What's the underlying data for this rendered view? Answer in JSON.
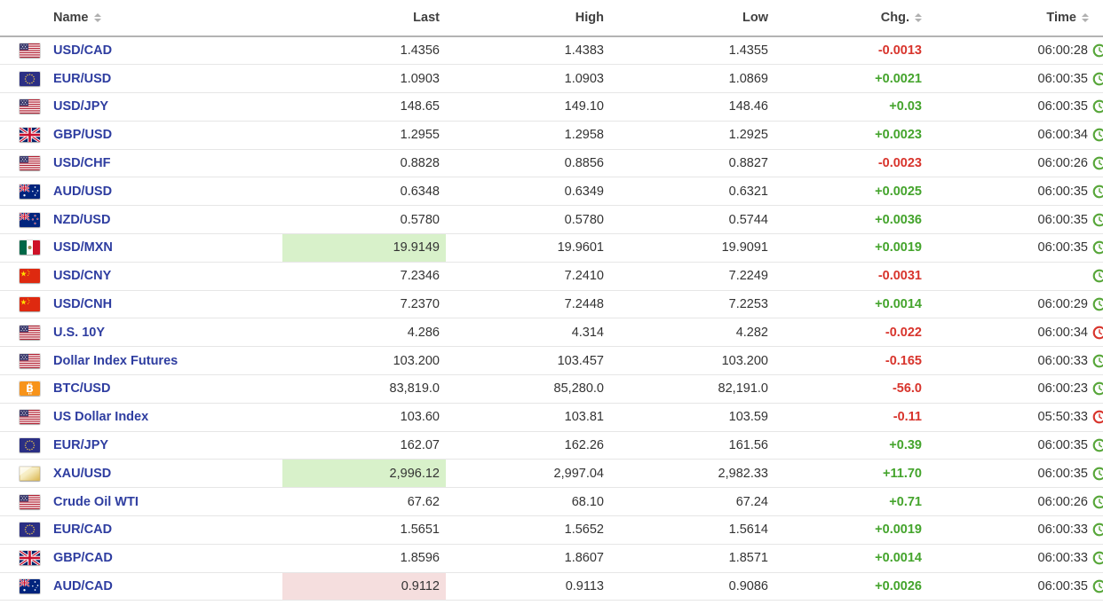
{
  "colors": {
    "link_blue": "#2e3da0",
    "change_up_green": "#44a42c",
    "change_down_red": "#d8342c",
    "highlight_green_bg": "#d8f1ca",
    "highlight_red_bg": "#f5dede",
    "header_divider": "#b3b3b3",
    "row_divider": "#e6e6e6",
    "bitcoin_orange": "#f7931a"
  },
  "table": {
    "columns": [
      {
        "label": "Name",
        "sortable": true
      },
      {
        "label": "Last",
        "sortable": false
      },
      {
        "label": "High",
        "sortable": false
      },
      {
        "label": "Low",
        "sortable": false
      },
      {
        "label": "Chg.",
        "sortable": true
      },
      {
        "label": "Time",
        "sortable": true
      }
    ],
    "rows": [
      {
        "name": "USD/CAD",
        "flag": "us",
        "last": "1.4356",
        "high": "1.4383",
        "low": "1.4355",
        "chg": "-0.0013",
        "chg_dir": "down",
        "time": "06:00:28",
        "clock": "green",
        "highlight": null
      },
      {
        "name": "EUR/USD",
        "flag": "eu",
        "last": "1.0903",
        "high": "1.0903",
        "low": "1.0869",
        "chg": "+0.0021",
        "chg_dir": "up",
        "time": "06:00:35",
        "clock": "green",
        "highlight": null
      },
      {
        "name": "USD/JPY",
        "flag": "us",
        "last": "148.65",
        "high": "149.10",
        "low": "148.46",
        "chg": "+0.03",
        "chg_dir": "up",
        "time": "06:00:35",
        "clock": "green",
        "highlight": null
      },
      {
        "name": "GBP/USD",
        "flag": "uk",
        "last": "1.2955",
        "high": "1.2958",
        "low": "1.2925",
        "chg": "+0.0023",
        "chg_dir": "up",
        "time": "06:00:34",
        "clock": "green",
        "highlight": null
      },
      {
        "name": "USD/CHF",
        "flag": "us",
        "last": "0.8828",
        "high": "0.8856",
        "low": "0.8827",
        "chg": "-0.0023",
        "chg_dir": "down",
        "time": "06:00:26",
        "clock": "green",
        "highlight": null
      },
      {
        "name": "AUD/USD",
        "flag": "au",
        "last": "0.6348",
        "high": "0.6349",
        "low": "0.6321",
        "chg": "+0.0025",
        "chg_dir": "up",
        "time": "06:00:35",
        "clock": "green",
        "highlight": null
      },
      {
        "name": "NZD/USD",
        "flag": "nz",
        "last": "0.5780",
        "high": "0.5780",
        "low": "0.5744",
        "chg": "+0.0036",
        "chg_dir": "up",
        "time": "06:00:35",
        "clock": "green",
        "highlight": null
      },
      {
        "name": "USD/MXN",
        "flag": "mx",
        "last": "19.9149",
        "high": "19.9601",
        "low": "19.9091",
        "chg": "+0.0019",
        "chg_dir": "up",
        "time": "06:00:35",
        "clock": "green",
        "highlight": "green"
      },
      {
        "name": "USD/CNY",
        "flag": "cn",
        "last": "7.2346",
        "high": "7.2410",
        "low": "7.2249",
        "chg": "-0.0031",
        "chg_dir": "down",
        "time": "",
        "clock": "green",
        "highlight": null
      },
      {
        "name": "USD/CNH",
        "flag": "cn",
        "last": "7.2370",
        "high": "7.2448",
        "low": "7.2253",
        "chg": "+0.0014",
        "chg_dir": "up",
        "time": "06:00:29",
        "clock": "green",
        "highlight": null
      },
      {
        "name": "U.S. 10Y",
        "flag": "us",
        "last": "4.286",
        "high": "4.314",
        "low": "4.282",
        "chg": "-0.022",
        "chg_dir": "down",
        "time": "06:00:34",
        "clock": "red",
        "highlight": null
      },
      {
        "name": "Dollar Index Futures",
        "flag": "us",
        "last": "103.200",
        "high": "103.457",
        "low": "103.200",
        "chg": "-0.165",
        "chg_dir": "down",
        "time": "06:00:33",
        "clock": "green",
        "highlight": null
      },
      {
        "name": "BTC/USD",
        "flag": "btc",
        "last": "83,819.0",
        "high": "85,280.0",
        "low": "82,191.0",
        "chg": "-56.0",
        "chg_dir": "down",
        "time": "06:00:23",
        "clock": "green",
        "highlight": null
      },
      {
        "name": "US Dollar Index",
        "flag": "us",
        "last": "103.60",
        "high": "103.81",
        "low": "103.59",
        "chg": "-0.11",
        "chg_dir": "down",
        "time": "05:50:33",
        "clock": "red",
        "highlight": null
      },
      {
        "name": "EUR/JPY",
        "flag": "eu",
        "last": "162.07",
        "high": "162.26",
        "low": "161.56",
        "chg": "+0.39",
        "chg_dir": "up",
        "time": "06:00:35",
        "clock": "green",
        "highlight": null
      },
      {
        "name": "XAU/USD",
        "flag": "gold",
        "last": "2,996.12",
        "high": "2,997.04",
        "low": "2,982.33",
        "chg": "+11.70",
        "chg_dir": "up",
        "time": "06:00:35",
        "clock": "green",
        "highlight": "green"
      },
      {
        "name": "Crude Oil WTI",
        "flag": "us",
        "last": "67.62",
        "high": "68.10",
        "low": "67.24",
        "chg": "+0.71",
        "chg_dir": "up",
        "time": "06:00:26",
        "clock": "green",
        "highlight": null
      },
      {
        "name": "EUR/CAD",
        "flag": "eu",
        "last": "1.5651",
        "high": "1.5652",
        "low": "1.5614",
        "chg": "+0.0019",
        "chg_dir": "up",
        "time": "06:00:33",
        "clock": "green",
        "highlight": null
      },
      {
        "name": "GBP/CAD",
        "flag": "uk",
        "last": "1.8596",
        "high": "1.8607",
        "low": "1.8571",
        "chg": "+0.0014",
        "chg_dir": "up",
        "time": "06:00:33",
        "clock": "green",
        "highlight": null
      },
      {
        "name": "AUD/CAD",
        "flag": "au",
        "last": "0.9112",
        "high": "0.9113",
        "low": "0.9086",
        "chg": "+0.0026",
        "chg_dir": "up",
        "time": "06:00:35",
        "clock": "green",
        "highlight": "red"
      }
    ]
  }
}
